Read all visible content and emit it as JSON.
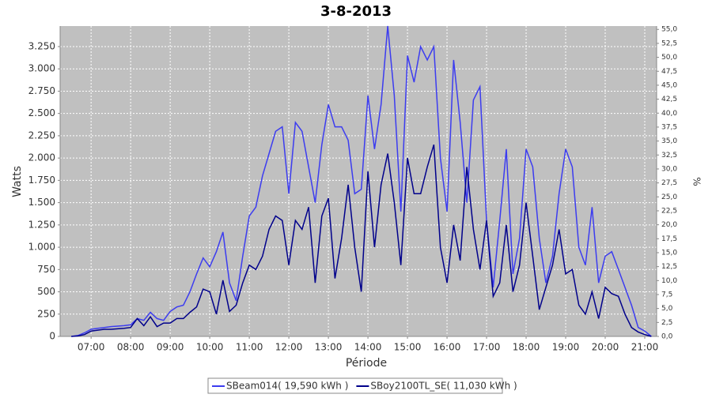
{
  "chart_data": {
    "type": "line",
    "title": "3-8-2013",
    "x_label": "Période",
    "y_label": "Watts",
    "y2_label": "%",
    "x": [
      "06:30",
      "06:40",
      "06:50",
      "07:00",
      "07:10",
      "07:20",
      "07:30",
      "07:40",
      "07:50",
      "08:00",
      "08:10",
      "08:20",
      "08:30",
      "08:40",
      "08:50",
      "09:00",
      "09:10",
      "09:20",
      "09:30",
      "09:40",
      "09:50",
      "10:00",
      "10:10",
      "10:20",
      "10:30",
      "10:40",
      "10:50",
      "11:00",
      "11:10",
      "11:20",
      "11:30",
      "11:40",
      "11:50",
      "12:00",
      "12:10",
      "12:20",
      "12:30",
      "12:40",
      "12:50",
      "13:00",
      "13:10",
      "13:20",
      "13:30",
      "13:40",
      "13:50",
      "14:00",
      "14:10",
      "14:20",
      "14:30",
      "14:40",
      "14:50",
      "15:00",
      "15:10",
      "15:20",
      "15:30",
      "15:40",
      "15:50",
      "16:00",
      "16:10",
      "16:20",
      "16:30",
      "16:40",
      "16:50",
      "17:00",
      "17:10",
      "17:20",
      "17:30",
      "17:40",
      "17:50",
      "18:00",
      "18:10",
      "18:20",
      "18:30",
      "18:40",
      "18:50",
      "19:00",
      "19:10",
      "19:20",
      "19:30",
      "19:40",
      "19:50",
      "20:00",
      "20:10",
      "20:20",
      "20:30",
      "20:40",
      "20:50",
      "21:00",
      "21:10"
    ],
    "xlim": [
      "06:13",
      "21:18"
    ],
    "xticks": [
      "07:00",
      "08:00",
      "09:00",
      "10:00",
      "11:00",
      "12:00",
      "13:00",
      "14:00",
      "15:00",
      "16:00",
      "17:00",
      "18:00",
      "19:00",
      "20:00",
      "21:00"
    ],
    "ylim": [
      0,
      3480
    ],
    "yticks": [
      0,
      250,
      500,
      750,
      {
        "value": 1000,
        "label": "1.000"
      },
      {
        "value": 1250,
        "label": "1.250"
      },
      {
        "value": 1500,
        "label": "1.500"
      },
      {
        "value": 1750,
        "label": "1.750"
      },
      {
        "value": 2000,
        "label": "2.000"
      },
      {
        "value": 2250,
        "label": "2.250"
      },
      {
        "value": 2500,
        "label": "2.500"
      },
      {
        "value": 2750,
        "label": "2.750"
      },
      {
        "value": 3000,
        "label": "3.000"
      },
      {
        "value": 3250,
        "label": "3.250"
      }
    ],
    "y2lim": [
      0,
      55.6
    ],
    "y2ticks": [
      {
        "value": 0,
        "label": "0,0"
      },
      {
        "value": 2.5,
        "label": "2,5"
      },
      {
        "value": 5,
        "label": "5,0"
      },
      {
        "value": 7.5,
        "label": "7,5"
      },
      {
        "value": 10,
        "label": "10,0"
      },
      {
        "value": 12.5,
        "label": "12,5"
      },
      {
        "value": 15,
        "label": "15,0"
      },
      {
        "value": 17.5,
        "label": "17,5"
      },
      {
        "value": 20,
        "label": "20,0"
      },
      {
        "value": 22.5,
        "label": "22,5"
      },
      {
        "value": 25,
        "label": "25,0"
      },
      {
        "value": 27.5,
        "label": "27,5"
      },
      {
        "value": 30,
        "label": "30,0"
      },
      {
        "value": 32.5,
        "label": "32,5"
      },
      {
        "value": 35,
        "label": "35,0"
      },
      {
        "value": 37.5,
        "label": "37,5"
      },
      {
        "value": 40,
        "label": "40,0"
      },
      {
        "value": 42.5,
        "label": "42,5"
      },
      {
        "value": 45,
        "label": "45,0"
      },
      {
        "value": 47.5,
        "label": "47,5"
      },
      {
        "value": 50,
        "label": "50,0"
      },
      {
        "value": 52.5,
        "label": "52,5"
      },
      {
        "value": 55,
        "label": "55,0"
      }
    ],
    "grid": true,
    "series": [
      {
        "name": "SBeam014( 19,590 kWh )",
        "color": "#3c3cf0",
        "values": [
          0,
          10,
          40,
          80,
          90,
          100,
          110,
          115,
          120,
          130,
          200,
          180,
          270,
          200,
          180,
          280,
          330,
          350,
          500,
          700,
          880,
          780,
          950,
          1170,
          600,
          400,
          900,
          1350,
          1450,
          1800,
          2050,
          2300,
          2350,
          1600,
          2400,
          2300,
          1900,
          1500,
          2150,
          2600,
          2350,
          2350,
          2200,
          1600,
          1650,
          2700,
          2100,
          2600,
          3480,
          2700,
          1400,
          3150,
          2850,
          3250,
          3100,
          3250,
          2000,
          1400,
          3100,
          2400,
          1500,
          2650,
          2800,
          1300,
          550,
          1300,
          2100,
          700,
          1100,
          2100,
          1900,
          1100,
          600,
          900,
          1600,
          2100,
          1900,
          1000,
          800,
          1450,
          600,
          900,
          950,
          750,
          550,
          350,
          100,
          60,
          0
        ]
      },
      {
        "name": "SBoy2100TL_SE( 11,030 kWh )",
        "color": "#00008b",
        "values": [
          0,
          5,
          20,
          60,
          70,
          80,
          80,
          85,
          90,
          100,
          200,
          120,
          220,
          110,
          150,
          150,
          200,
          200,
          270,
          330,
          530,
          500,
          250,
          630,
          280,
          350,
          600,
          800,
          750,
          900,
          1200,
          1350,
          1300,
          800,
          1300,
          1200,
          1450,
          600,
          1350,
          1550,
          650,
          1100,
          1700,
          1000,
          500,
          1850,
          1000,
          1700,
          2050,
          1500,
          800,
          2000,
          1600,
          1600,
          1900,
          2150,
          1000,
          600,
          1250,
          850,
          1900,
          1200,
          750,
          1300,
          450,
          600,
          1250,
          500,
          800,
          1500,
          900,
          300,
          550,
          800,
          1200,
          700,
          750,
          350,
          250,
          500,
          200,
          550,
          480,
          450,
          250,
          100,
          50,
          20,
          0
        ]
      }
    ]
  }
}
